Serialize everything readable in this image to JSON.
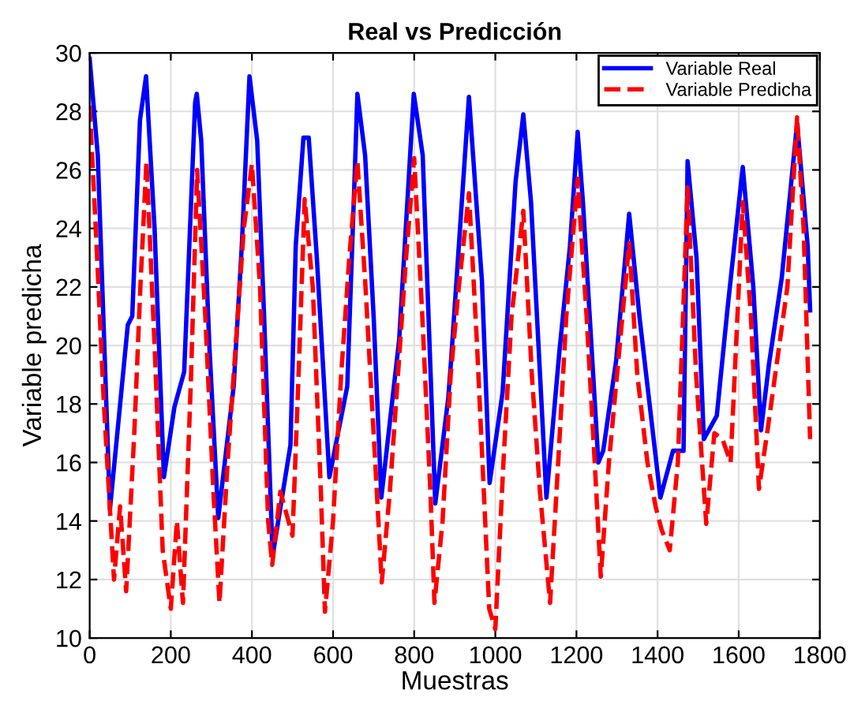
{
  "chart_data": {
    "type": "line",
    "title": "Real vs Predicción",
    "xlabel": "Muestras",
    "ylabel": "Variable predicha",
    "xlim": [
      0,
      1800
    ],
    "xticks": [
      0,
      200,
      400,
      600,
      800,
      1000,
      1200,
      1400,
      1600,
      1800
    ],
    "ylim": [
      10,
      30
    ],
    "yticks": [
      10,
      12,
      14,
      16,
      18,
      20,
      22,
      24,
      26,
      28,
      30
    ],
    "grid": true,
    "legend": "top right",
    "marker": "none",
    "series": [
      {
        "name": "Variable Real",
        "color": "#0000ff",
        "line_style": "solid",
        "x": [
          0,
          20,
          50,
          94,
          105,
          124,
          139,
          160,
          183,
          209,
          233,
          260,
          264,
          275,
          295,
          317,
          355,
          375,
          394,
          413,
          430,
          451,
          495,
          508,
          527,
          540,
          560,
          591,
          635,
          654,
          660,
          679,
          700,
          719,
          763,
          799,
          821,
          852,
          884,
          891,
          935,
          967,
          986,
          1018,
          1050,
          1069,
          1088,
          1126,
          1158,
          1184,
          1203,
          1216,
          1254,
          1266,
          1298,
          1330,
          1356,
          1407,
          1438,
          1464,
          1474,
          1496,
          1514,
          1546,
          1572,
          1610,
          1636,
          1655,
          1674,
          1706,
          1744,
          1770,
          1776
        ],
        "values": [
          29.8,
          26.5,
          14.4,
          20.7,
          21.0,
          27.7,
          29.2,
          24.0,
          15.5,
          17.9,
          19.1,
          28.3,
          28.6,
          27.0,
          20.0,
          14.1,
          18.6,
          23.4,
          29.2,
          27.0,
          21.0,
          12.8,
          16.6,
          23.4,
          27.1,
          27.1,
          23.0,
          15.5,
          18.6,
          26.1,
          28.6,
          26.5,
          21.0,
          14.8,
          20.2,
          28.6,
          26.5,
          14.6,
          18.2,
          19.5,
          28.5,
          22.2,
          15.3,
          18.4,
          25.6,
          27.9,
          24.9,
          14.8,
          19.8,
          23.4,
          27.3,
          24.9,
          16.0,
          16.4,
          19.5,
          24.5,
          20.9,
          14.8,
          16.4,
          16.4,
          26.3,
          23.0,
          16.8,
          17.6,
          21.2,
          26.1,
          22.0,
          17.1,
          19.3,
          22.3,
          27.6,
          23.4,
          21.2
        ]
      },
      {
        "name": "Variable Predicha",
        "color": "#ff0000",
        "line_style": "dashed",
        "x": [
          0,
          15,
          35,
          60,
          75,
          90,
          110,
          125,
          140,
          160,
          180,
          200,
          215,
          230,
          250,
          265,
          285,
          305,
          320,
          340,
          360,
          380,
          400,
          420,
          440,
          450,
          470,
          500,
          515,
          530,
          550,
          570,
          580,
          600,
          620,
          640,
          660,
          680,
          700,
          720,
          740,
          760,
          780,
          800,
          820,
          840,
          850,
          870,
          890,
          910,
          935,
          955,
          975,
          985,
          1000,
          1020,
          1040,
          1069,
          1090,
          1110,
          1135,
          1155,
          1175,
          1203,
          1225,
          1245,
          1260,
          1280,
          1300,
          1330,
          1350,
          1375,
          1395,
          1410,
          1430,
          1450,
          1474,
          1495,
          1520,
          1540,
          1560,
          1580,
          1610,
          1630,
          1650,
          1670,
          1690,
          1720,
          1744,
          1760,
          1776
        ],
        "values": [
          28.2,
          24.0,
          18.0,
          12.0,
          14.5,
          11.6,
          17.0,
          22.0,
          26.3,
          20.0,
          13.0,
          11.0,
          14.0,
          11.2,
          19.0,
          26.0,
          21.0,
          15.0,
          11.2,
          16.0,
          20.0,
          24.0,
          26.2,
          22.0,
          14.0,
          12.5,
          15.0,
          13.5,
          19.0,
          25.0,
          22.0,
          15.0,
          10.9,
          14.0,
          19.0,
          23.0,
          26.3,
          22.0,
          17.0,
          11.9,
          15.0,
          19.0,
          23.0,
          26.4,
          21.0,
          15.0,
          11.2,
          14.0,
          19.0,
          22.0,
          25.2,
          20.0,
          14.0,
          11.0,
          10.3,
          16.0,
          21.0,
          24.6,
          19.0,
          15.0,
          11.2,
          16.0,
          21.0,
          25.7,
          21.0,
          16.0,
          12.1,
          16.0,
          19.0,
          23.5,
          19.0,
          16.0,
          14.5,
          13.7,
          13.0,
          16.0,
          25.4,
          19.0,
          13.9,
          17.0,
          16.8,
          16.0,
          24.9,
          21.0,
          15.1,
          17.0,
          19.0,
          22.0,
          27.8,
          24.0,
          16.8
        ]
      }
    ]
  }
}
